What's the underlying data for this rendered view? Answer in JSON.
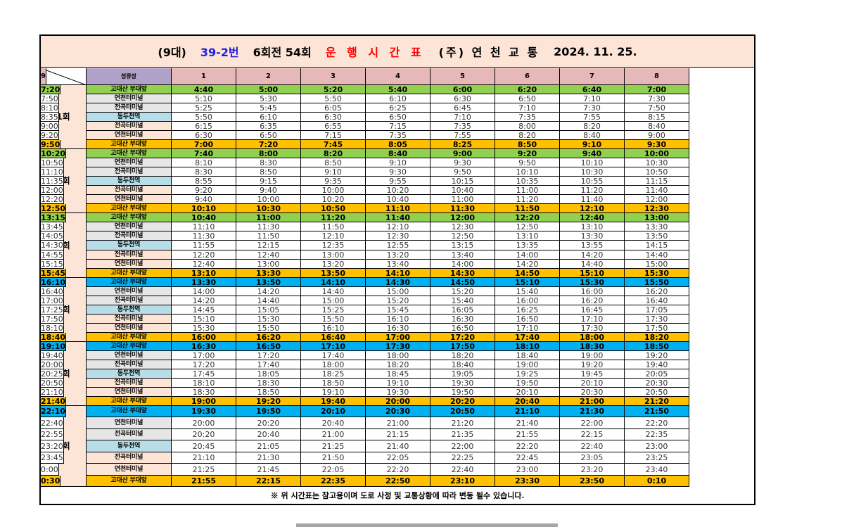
{
  "title": {
    "count": "(9대)",
    "route": "39-2번",
    "rounds": "6회전 54회",
    "heading": "운 행 시 간 표",
    "company": "(주) 연 천 교 통",
    "date": "2024. 11. 25."
  },
  "header": {
    "stop_label": "정류장",
    "buses": [
      "1",
      "2",
      "3",
      "4",
      "5",
      "6",
      "7",
      "8",
      "9"
    ]
  },
  "colors": {
    "title_bg": "#fce4d6",
    "header_bg": "#e6b9b8",
    "stop_header_bg": "#b1a0c7",
    "green": "#92d050",
    "orange": "#ffc000",
    "cyan": "#00b0f0",
    "grey": "#e7e6e6",
    "light_blue": "#b7dee8",
    "peach": "#fce4d6",
    "route_blue": "#1f1fe0",
    "heading_red": "#ff0000"
  },
  "trips": [
    {
      "label": "1회",
      "rows": [
        {
          "stop": "고대산 부대앞",
          "style": "green",
          "times": [
            "4:40",
            "5:00",
            "5:20",
            "5:40",
            "6:00",
            "6:20",
            "6:40",
            "7:00",
            "7:20"
          ]
        },
        {
          "stop": "연천터미널",
          "style": "grey",
          "times": [
            "5:10",
            "5:30",
            "5:50",
            "6:10",
            "6:30",
            "6:50",
            "7:10",
            "7:30",
            "7:50"
          ]
        },
        {
          "stop": "전곡터미널",
          "style": "grey",
          "times": [
            "5:25",
            "5:45",
            "6:05",
            "6:25",
            "6:45",
            "7:10",
            "7:30",
            "7:50",
            "8:10"
          ]
        },
        {
          "stop": "동두천역",
          "style": "blue",
          "times": [
            "5:50",
            "6:10",
            "6:30",
            "6:50",
            "7:10",
            "7:35",
            "7:55",
            "8:15",
            "8:35"
          ]
        },
        {
          "stop": "전곡터미널",
          "style": "peach",
          "times": [
            "6:15",
            "6:35",
            "6:55",
            "7:15",
            "7:35",
            "8:00",
            "8:20",
            "8:40",
            "9:00"
          ]
        },
        {
          "stop": "연천터미널",
          "style": "peach",
          "times": [
            "6:30",
            "6:50",
            "7:15",
            "7:35",
            "7:55",
            "8:20",
            "8:40",
            "9:00",
            "9:20"
          ]
        },
        {
          "stop": "고대산 부대앞",
          "style": "orange",
          "times": [
            "7:00",
            "7:20",
            "7:45",
            "8:05",
            "8:25",
            "8:50",
            "9:10",
            "9:30",
            "9:50"
          ]
        }
      ]
    },
    {
      "label": "2회",
      "rows": [
        {
          "stop": "고대산 부대앞",
          "style": "green",
          "times": [
            "7:40",
            "8:00",
            "8:20",
            "8:40",
            "9:00",
            "9:20",
            "9:40",
            "10:00",
            "10:20"
          ]
        },
        {
          "stop": "연천터미널",
          "style": "grey",
          "times": [
            "8:10",
            "8:30",
            "8:50",
            "9:10",
            "9:30",
            "9:50",
            "10:10",
            "10:30",
            "10:50"
          ]
        },
        {
          "stop": "전곡터미널",
          "style": "grey",
          "times": [
            "8:30",
            "8:50",
            "9:10",
            "9:30",
            "9:50",
            "10:10",
            "10:30",
            "10:50",
            "11:10"
          ]
        },
        {
          "stop": "동두천역",
          "style": "blue",
          "times": [
            "8:55",
            "9:15",
            "9:35",
            "9:55",
            "10:15",
            "10:35",
            "10:55",
            "11:15",
            "11:35"
          ]
        },
        {
          "stop": "전곡터미널",
          "style": "peach",
          "times": [
            "9:20",
            "9:40",
            "10:00",
            "10:20",
            "10:40",
            "11:00",
            "11:20",
            "11:40",
            "12:00"
          ]
        },
        {
          "stop": "연천터미널",
          "style": "peach",
          "times": [
            "9:40",
            "10:00",
            "10:20",
            "10:40",
            "11:00",
            "11:20",
            "11:40",
            "12:00",
            "12:20"
          ]
        },
        {
          "stop": "고대산 부대앞",
          "style": "orange",
          "times": [
            "10:10",
            "10:30",
            "10:50",
            "11:10",
            "11:30",
            "11:50",
            "12:10",
            "12:30",
            "12:50"
          ]
        }
      ]
    },
    {
      "label": "3회",
      "rows": [
        {
          "stop": "고대산 부대앞",
          "style": "green",
          "times": [
            "10:40",
            "11:00",
            "11:20",
            "11:40",
            "12:00",
            "12:20",
            "12:40",
            "13:00",
            "13:15"
          ]
        },
        {
          "stop": "연천터미널",
          "style": "grey",
          "times": [
            "11:10",
            "11:30",
            "11:50",
            "12:10",
            "12:30",
            "12:50",
            "13:10",
            "13:30",
            "13:45"
          ]
        },
        {
          "stop": "전곡터미널",
          "style": "grey",
          "times": [
            "11:30",
            "11:50",
            "12:10",
            "12:30",
            "12:50",
            "13:10",
            "13:30",
            "13:50",
            "14:05"
          ]
        },
        {
          "stop": "동두천역",
          "style": "blue",
          "times": [
            "11:55",
            "12:15",
            "12:35",
            "12:55",
            "13:15",
            "13:35",
            "13:55",
            "14:15",
            "14:30"
          ]
        },
        {
          "stop": "전곡터미널",
          "style": "peach",
          "times": [
            "12:20",
            "12:40",
            "13:00",
            "13:20",
            "13:40",
            "14:00",
            "14:20",
            "14:40",
            "14:55"
          ]
        },
        {
          "stop": "연천터미널",
          "style": "peach",
          "times": [
            "12:40",
            "13:00",
            "13:20",
            "13:40",
            "14:00",
            "14:20",
            "14:40",
            "15:00",
            "15:15"
          ]
        },
        {
          "stop": "고대산 부대앞",
          "style": "orange",
          "times": [
            "13:10",
            "13:30",
            "13:50",
            "14:10",
            "14:30",
            "14:50",
            "15:10",
            "15:30",
            "15:45"
          ]
        }
      ]
    },
    {
      "label": "4회",
      "rows": [
        {
          "stop": "고대산 부대앞",
          "style": "cyan",
          "times": [
            "13:30",
            "13:50",
            "14:10",
            "14:30",
            "14:50",
            "15:10",
            "15:30",
            "15:50",
            "16:10"
          ]
        },
        {
          "stop": "연천터미널",
          "style": "grey",
          "times": [
            "14:00",
            "14:20",
            "14:40",
            "15:00",
            "15:20",
            "15:40",
            "16:00",
            "16:20",
            "16:40"
          ]
        },
        {
          "stop": "전곡터미널",
          "style": "grey",
          "times": [
            "14:20",
            "14:40",
            "15:00",
            "15:20",
            "15:40",
            "16:00",
            "16:20",
            "16:40",
            "17:00"
          ]
        },
        {
          "stop": "동두천역",
          "style": "blue",
          "times": [
            "14:45",
            "15:05",
            "15:25",
            "15:45",
            "16:05",
            "16:25",
            "16:45",
            "17:05",
            "17:25"
          ]
        },
        {
          "stop": "전곡터미널",
          "style": "peach",
          "times": [
            "15:10",
            "15:30",
            "15:50",
            "16:10",
            "16:30",
            "16:50",
            "17:10",
            "17:30",
            "17:50"
          ]
        },
        {
          "stop": "연천터미널",
          "style": "peach",
          "times": [
            "15:30",
            "15:50",
            "16:10",
            "16:30",
            "16:50",
            "17:10",
            "17:30",
            "17:50",
            "18:10"
          ]
        },
        {
          "stop": "고대산 부대앞",
          "style": "orange",
          "times": [
            "16:00",
            "16:20",
            "16:40",
            "17:00",
            "17:20",
            "17:40",
            "18:00",
            "18:20",
            "18:40"
          ]
        }
      ]
    },
    {
      "label": "5회",
      "rows": [
        {
          "stop": "고대산 부대앞",
          "style": "cyan",
          "times": [
            "16:30",
            "16:50",
            "17:10",
            "17:30",
            "17:50",
            "18:10",
            "18:30",
            "18:50",
            "19:10"
          ]
        },
        {
          "stop": "연천터미널",
          "style": "grey",
          "times": [
            "17:00",
            "17:20",
            "17:40",
            "18:00",
            "18:20",
            "18:40",
            "19:00",
            "19:20",
            "19:40"
          ]
        },
        {
          "stop": "전곡터미널",
          "style": "grey",
          "times": [
            "17:20",
            "17:40",
            "18:00",
            "18:20",
            "18:40",
            "19:00",
            "19:20",
            "19:40",
            "20:00"
          ]
        },
        {
          "stop": "동두천역",
          "style": "blue",
          "times": [
            "17:45",
            "18:05",
            "18:25",
            "18:45",
            "19:05",
            "19:25",
            "19:45",
            "20:05",
            "20:25"
          ]
        },
        {
          "stop": "전곡터미널",
          "style": "peach",
          "times": [
            "18:10",
            "18:30",
            "18:50",
            "19:10",
            "19:30",
            "19:50",
            "20:10",
            "20:30",
            "20:50"
          ]
        },
        {
          "stop": "연천터미널",
          "style": "peach",
          "times": [
            "18:30",
            "18:50",
            "19:10",
            "19:30",
            "19:50",
            "20:10",
            "20:30",
            "20:50",
            "21:10"
          ]
        },
        {
          "stop": "고대산 부대앞",
          "style": "orange",
          "times": [
            "19:00",
            "19:20",
            "19:40",
            "20:00",
            "20:20",
            "20:40",
            "21:00",
            "21:20",
            "21:40"
          ]
        }
      ]
    },
    {
      "label": "6회",
      "rows": [
        {
          "stop": "고대산 부대앞",
          "style": "cyan",
          "times": [
            "19:30",
            "19:50",
            "20:10",
            "20:30",
            "20:50",
            "21:10",
            "21:30",
            "21:50",
            "22:10"
          ]
        },
        {
          "stop": "연천터미널",
          "style": "grey",
          "times": [
            "20:00",
            "20:20",
            "20:40",
            "21:00",
            "21:20",
            "21:40",
            "22:00",
            "22:20",
            "22:40"
          ]
        },
        {
          "stop": "전곡터미널",
          "style": "grey",
          "times": [
            "20:20",
            "20:40",
            "21:00",
            "21:15",
            "21:35",
            "21:55",
            "22:15",
            "22:35",
            "22:55"
          ]
        },
        {
          "stop": "동두천역",
          "style": "blue",
          "times": [
            "20:45",
            "21:05",
            "21:25",
            "21:40",
            "22:00",
            "22:20",
            "22:40",
            "23:00",
            "23:20"
          ]
        },
        {
          "stop": "전곡터미널",
          "style": "peach",
          "times": [
            "21:10",
            "21:30",
            "21:50",
            "22:05",
            "22:25",
            "22:45",
            "23:05",
            "23:25",
            "23:45"
          ]
        },
        {
          "stop": "연천터미널",
          "style": "peach",
          "times": [
            "21:25",
            "21:45",
            "22:05",
            "22:20",
            "22:40",
            "23:00",
            "23:20",
            "23:40",
            "0:00"
          ]
        },
        {
          "stop": "고대산 부대앞",
          "style": "orange",
          "times": [
            "21:55",
            "22:15",
            "22:35",
            "22:50",
            "23:10",
            "23:30",
            "23:50",
            "0:10",
            "0:30"
          ]
        }
      ]
    }
  ],
  "footnote": "※ 위 시간표는 참고용이며  도로 사정 및 교통상황에 따라 변동 될수 있습니다."
}
